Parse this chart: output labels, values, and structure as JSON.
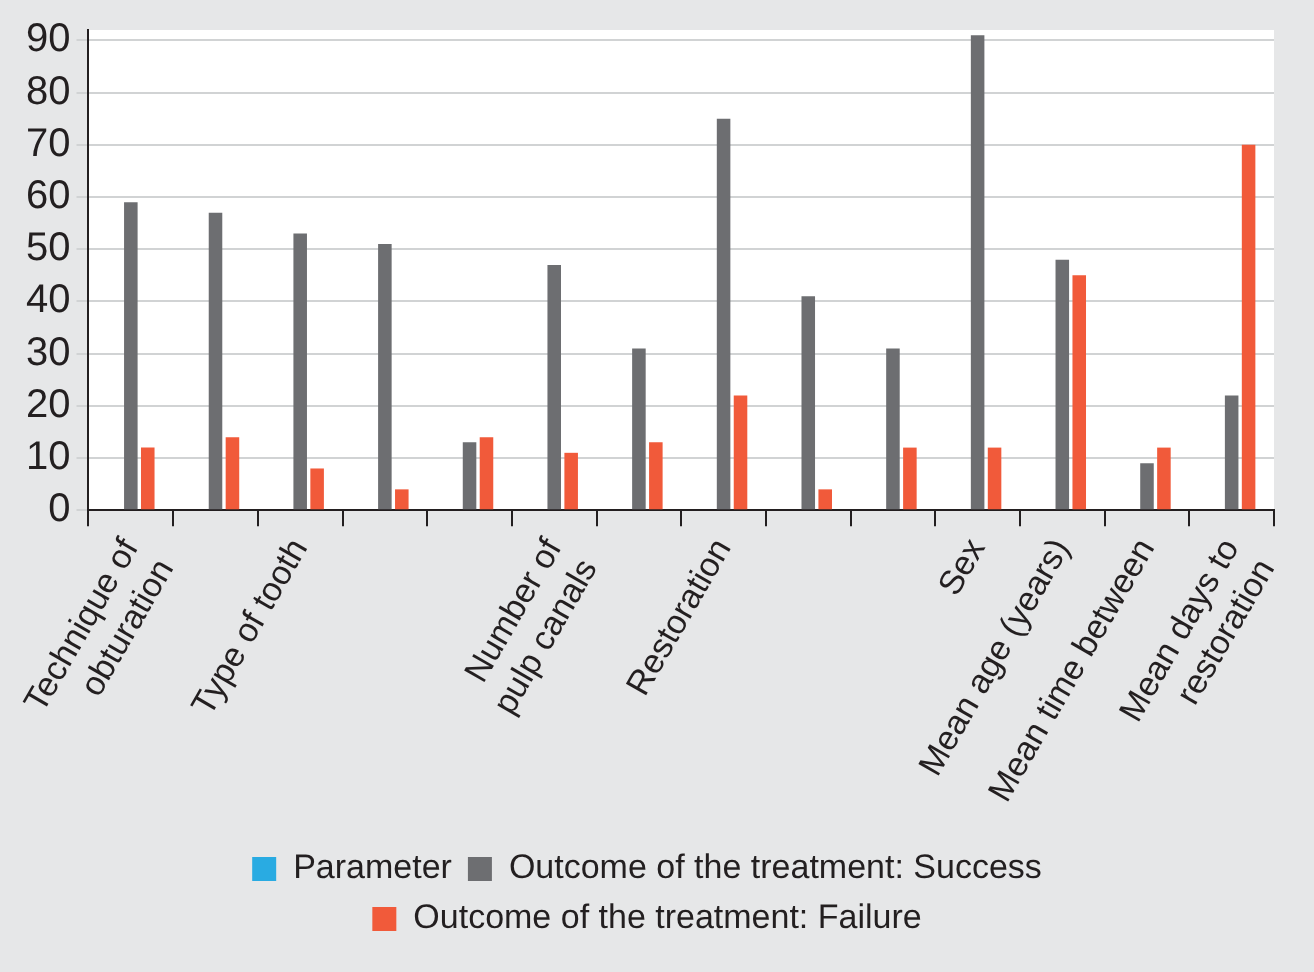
{
  "chart_data": {
    "type": "bar",
    "categories": [
      "Technique of obturation",
      null,
      "Type of tooth",
      null,
      null,
      "Number of pulp canals",
      null,
      "Restoration",
      null,
      null,
      "Sex",
      "Mean age (years)",
      "Mean time between",
      "Mean days to restoration"
    ],
    "series": [
      {
        "name": "Parameter",
        "color": "#29abe2",
        "values": [
          0,
          0,
          0,
          0,
          0,
          0,
          0,
          0,
          0,
          0,
          0,
          null,
          null,
          null
        ]
      },
      {
        "name": "Outcome of the treatment: Success",
        "color": "#6d6e71",
        "values": [
          59,
          57,
          53,
          51,
          13,
          47,
          31,
          75,
          41,
          31,
          91,
          48,
          9,
          22
        ]
      },
      {
        "name": "Outcome of the treatment: Failure",
        "color": "#f15a3a",
        "values": [
          12,
          14,
          8,
          4,
          14,
          11,
          13,
          22,
          4,
          12,
          12,
          45,
          12,
          70
        ]
      }
    ],
    "ylim": [
      0,
      92
    ],
    "yticks": [
      0,
      10,
      20,
      30,
      40,
      50,
      60,
      70,
      80,
      90
    ],
    "grid": "y",
    "legend": "bottom"
  }
}
